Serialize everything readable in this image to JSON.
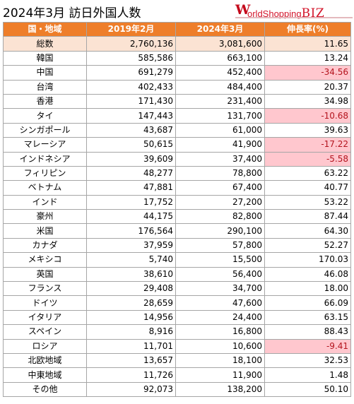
{
  "title": "2024年3月 訪日外国人数",
  "logo": {
    "initial": "W",
    "text": "orldShopping",
    "suffix": "BIZ"
  },
  "colors": {
    "header": "#ee7e2a",
    "total_row": "#fbe3d3",
    "negative": "#ffc7ce",
    "negative_text": "#b4141e"
  },
  "table": {
    "headers": [
      "国・地域",
      "2019年2月",
      "2024年3月",
      "伸長率(%)"
    ],
    "total": {
      "name": "総数",
      "y2019": "2,760,136",
      "y2024": "3,081,600",
      "growth": "11.65"
    },
    "rows": [
      {
        "name": "韓国",
        "y2019": "585,586",
        "y2024": "663,100",
        "growth": "13.24",
        "negative": false
      },
      {
        "name": "中国",
        "y2019": "691,279",
        "y2024": "452,400",
        "growth": "-34.56",
        "negative": true
      },
      {
        "name": "台湾",
        "y2019": "402,433",
        "y2024": "484,400",
        "growth": "20.37",
        "negative": false
      },
      {
        "name": "香港",
        "y2019": "171,430",
        "y2024": "231,400",
        "growth": "34.98",
        "negative": false
      },
      {
        "name": "タイ",
        "y2019": "147,443",
        "y2024": "131,700",
        "growth": "-10.68",
        "negative": true
      },
      {
        "name": "シンガポール",
        "y2019": "43,687",
        "y2024": "61,000",
        "growth": "39.63",
        "negative": false
      },
      {
        "name": "マレーシア",
        "y2019": "50,615",
        "y2024": "41,900",
        "growth": "-17.22",
        "negative": true
      },
      {
        "name": "インドネシア",
        "y2019": "39,609",
        "y2024": "37,400",
        "growth": "-5.58",
        "negative": true
      },
      {
        "name": "フィリピン",
        "y2019": "48,277",
        "y2024": "78,800",
        "growth": "63.22",
        "negative": false
      },
      {
        "name": "ベトナム",
        "y2019": "47,881",
        "y2024": "67,400",
        "growth": "40.77",
        "negative": false
      },
      {
        "name": "インド",
        "y2019": "17,752",
        "y2024": "27,200",
        "growth": "53.22",
        "negative": false
      },
      {
        "name": "豪州",
        "y2019": "44,175",
        "y2024": "82,800",
        "growth": "87.44",
        "negative": false
      },
      {
        "name": "米国",
        "y2019": "176,564",
        "y2024": "290,100",
        "growth": "64.30",
        "negative": false
      },
      {
        "name": "カナダ",
        "y2019": "37,959",
        "y2024": "57,800",
        "growth": "52.27",
        "negative": false
      },
      {
        "name": "メキシコ",
        "y2019": "5,740",
        "y2024": "15,500",
        "growth": "170.03",
        "negative": false
      },
      {
        "name": "英国",
        "y2019": "38,610",
        "y2024": "56,400",
        "growth": "46.08",
        "negative": false
      },
      {
        "name": "フランス",
        "y2019": "29,408",
        "y2024": "34,700",
        "growth": "18.00",
        "negative": false
      },
      {
        "name": "ドイツ",
        "y2019": "28,659",
        "y2024": "47,600",
        "growth": "66.09",
        "negative": false
      },
      {
        "name": "イタリア",
        "y2019": "14,956",
        "y2024": "24,400",
        "growth": "63.15",
        "negative": false
      },
      {
        "name": "スペイン",
        "y2019": "8,916",
        "y2024": "16,800",
        "growth": "88.43",
        "negative": false
      },
      {
        "name": "ロシア",
        "y2019": "11,701",
        "y2024": "10,600",
        "growth": "-9.41",
        "negative": true
      },
      {
        "name": "北欧地域",
        "y2019": "13,657",
        "y2024": "18,100",
        "growth": "32.53",
        "negative": false
      },
      {
        "name": "中東地域",
        "y2019": "11,726",
        "y2024": "11,900",
        "growth": "1.48",
        "negative": false
      },
      {
        "name": "その他",
        "y2019": "92,073",
        "y2024": "138,200",
        "growth": "50.10",
        "negative": false
      }
    ]
  }
}
